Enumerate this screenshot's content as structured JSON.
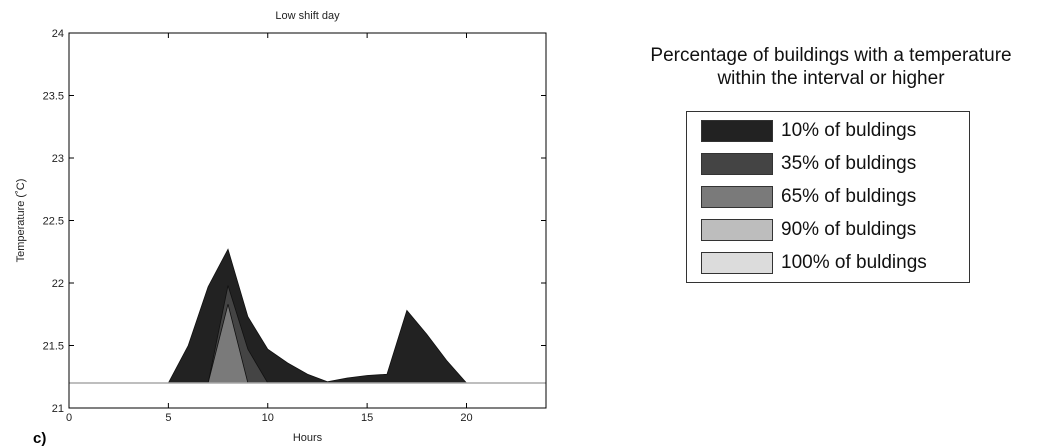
{
  "chart_data": {
    "type": "area",
    "title": "Low shift day",
    "xlabel": "Hours",
    "ylabel": "Temperature (˚C)",
    "panel_label": "c)",
    "xlim": [
      0,
      24
    ],
    "ylim": [
      21,
      24
    ],
    "xticks": [
      "0",
      "5",
      "10",
      "15",
      "20"
    ],
    "xtick_values": [
      0,
      5,
      10,
      15,
      20
    ],
    "yticks": [
      "21",
      "21.5",
      "22",
      "22.5",
      "23",
      "23.5",
      "24"
    ],
    "ytick_values": [
      21,
      21.5,
      22,
      22.5,
      23,
      23.5,
      24
    ],
    "baseline": 21.2,
    "legend_title_lines": [
      "Percentage of buildings with a temperature",
      "within the interval or higher"
    ],
    "series": [
      {
        "name": "10% of buldings",
        "color": "#222222",
        "x": [
          5,
          6,
          7,
          8,
          9,
          10,
          11,
          12,
          13,
          14,
          15,
          16,
          17,
          18,
          19,
          20
        ],
        "y": [
          21.2,
          21.5,
          21.97,
          22.27,
          21.73,
          21.47,
          21.36,
          21.27,
          21.21,
          21.24,
          21.26,
          21.27,
          21.78,
          21.59,
          21.38,
          21.2
        ]
      },
      {
        "name": "35% of buldings",
        "color": "#444444",
        "x": [
          7,
          8,
          9,
          10
        ],
        "y": [
          21.2,
          21.98,
          21.47,
          21.2
        ]
      },
      {
        "name": "65% of buldings",
        "color": "#7a7a7a",
        "x": [
          7,
          8,
          9
        ],
        "y": [
          21.2,
          21.83,
          21.2
        ]
      },
      {
        "name": "90% of buldings",
        "color": "#bdbdbd",
        "x": [],
        "y": []
      },
      {
        "name": "100% of buldings",
        "color": "#dcdcdc",
        "x": [],
        "y": []
      }
    ]
  }
}
